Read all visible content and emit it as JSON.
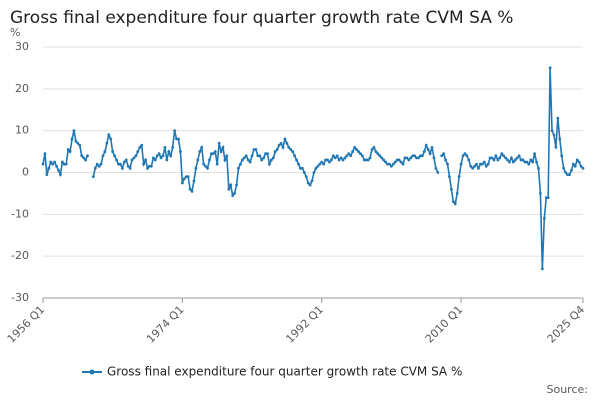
{
  "chart_data": {
    "type": "line",
    "title": "Gross final expenditure four quarter growth rate CVM SA %",
    "y_unit": "%",
    "source": "Source:",
    "categories": [
      "1956 Q1",
      null,
      null,
      null,
      null,
      null,
      null,
      null,
      null,
      null,
      null,
      null,
      null,
      null,
      null,
      null,
      null,
      null,
      null,
      null,
      null,
      null,
      null,
      null,
      null,
      null,
      null,
      null,
      null,
      null,
      null,
      null,
      null,
      null,
      null,
      null,
      null,
      null,
      null,
      null,
      null,
      null,
      null,
      null,
      null,
      null,
      null,
      null,
      null,
      null,
      null,
      null,
      null,
      null,
      null,
      null,
      null,
      null,
      null,
      null,
      null,
      null,
      null,
      null,
      null,
      null,
      null,
      null,
      null,
      null,
      null,
      null,
      "1974 Q1",
      null,
      null,
      null,
      null,
      null,
      null,
      null,
      null,
      null,
      null,
      null,
      null,
      null,
      null,
      null,
      null,
      null,
      null,
      null,
      null,
      null,
      null,
      null,
      null,
      null,
      null,
      null,
      null,
      null,
      null,
      null,
      null,
      null,
      null,
      null,
      null,
      null,
      null,
      null,
      null,
      null,
      null,
      null,
      null,
      null,
      null,
      null,
      null,
      null,
      null,
      null,
      null,
      null,
      null,
      null,
      null,
      null,
      null,
      null,
      null,
      null,
      null,
      null,
      null,
      null,
      null,
      null,
      null,
      null,
      null,
      null,
      "1992 Q1",
      null,
      null,
      null,
      null,
      null,
      null,
      null,
      null,
      null,
      null,
      null,
      null,
      null,
      null,
      null,
      null,
      null,
      null,
      null,
      null,
      null,
      null,
      null,
      null,
      null,
      null,
      null,
      null,
      null,
      null,
      null,
      null,
      null,
      null,
      null,
      null,
      null,
      null,
      null,
      null,
      null,
      null,
      null,
      null,
      null,
      null,
      null,
      null,
      null,
      null,
      null,
      null,
      null,
      null,
      null,
      null,
      null,
      null,
      null,
      null,
      null,
      null,
      null,
      null,
      null,
      null,
      null,
      null,
      null,
      null,
      null,
      "2010 Q1",
      null,
      null,
      null,
      null,
      null,
      null,
      null,
      null,
      null,
      null,
      null,
      null,
      null,
      null,
      null,
      null,
      null,
      null,
      null,
      null,
      null,
      null,
      null,
      null,
      null,
      null,
      null,
      null,
      null,
      null,
      null,
      null,
      null,
      null,
      null,
      null,
      null,
      null,
      null,
      null,
      null,
      null,
      null,
      null,
      null,
      null,
      null,
      null,
      null,
      null,
      null,
      null,
      null,
      null,
      null,
      null,
      null,
      null,
      null,
      null,
      null,
      null,
      "2025 Q4"
    ],
    "series": [
      {
        "name": "Gross final expenditure four quarter growth rate CVM SA %",
        "color": "#1f77b4",
        "values": [
          2,
          4.5,
          -0.5,
          1,
          2.5,
          2,
          2.5,
          1.5,
          0.5,
          -0.5,
          2.5,
          2,
          2,
          5.5,
          5,
          8,
          10,
          7.5,
          7,
          6.5,
          4,
          3.5,
          3,
          4,
          null,
          null,
          -1,
          1,
          2,
          1.5,
          2,
          4,
          5,
          7,
          9,
          8,
          5,
          4,
          3,
          2,
          2,
          1,
          2.5,
          3,
          1.5,
          1,
          3,
          3.5,
          4,
          5,
          6,
          6.5,
          2,
          3,
          1,
          1.5,
          1.5,
          3.5,
          3,
          4,
          4.5,
          3.5,
          4,
          6,
          3,
          5,
          4,
          6,
          10,
          8,
          8,
          5,
          -2.5,
          -1.5,
          -1,
          -1,
          -4,
          -4.5,
          -2,
          1,
          3,
          5,
          6,
          2,
          1.5,
          1,
          3,
          4.5,
          4.5,
          5,
          2,
          7,
          5,
          6,
          3,
          4,
          -4,
          -3,
          -5.5,
          -5,
          -3,
          1,
          2,
          3,
          3.5,
          4,
          3,
          2.5,
          4,
          5.5,
          5.5,
          4,
          4,
          3,
          3.5,
          4.5,
          4.5,
          2,
          3,
          3.5,
          5,
          5.5,
          6.5,
          7,
          6,
          8,
          7,
          6,
          5.5,
          5,
          4,
          3,
          2,
          1,
          1,
          0,
          -1,
          -2.5,
          -3,
          -2,
          0,
          1,
          1.5,
          2,
          2.5,
          2,
          3,
          3,
          2.5,
          3,
          4,
          3.5,
          4,
          3,
          3.5,
          3,
          3.5,
          4,
          4.5,
          4,
          5,
          6,
          5.5,
          5,
          4.5,
          4,
          3,
          3,
          3,
          3.5,
          5.5,
          6,
          5,
          4.5,
          4,
          3.5,
          3,
          2.5,
          2,
          2,
          1.5,
          2,
          2.5,
          3,
          3,
          2.5,
          2,
          3.5,
          3.5,
          3,
          3.5,
          4,
          4,
          3.5,
          3.5,
          4,
          4,
          5,
          6.5,
          5.5,
          4.5,
          6,
          3.5,
          1,
          0,
          null,
          4,
          4.5,
          3,
          2,
          -1,
          -4,
          -7,
          -7.5,
          -5,
          -1,
          2,
          4,
          4.5,
          4,
          3,
          1.5,
          1,
          1.5,
          2,
          1,
          2,
          2,
          2.5,
          1.5,
          2,
          3.5,
          3.5,
          3,
          4,
          3,
          3.5,
          4.5,
          4,
          3.5,
          3,
          2.5,
          3.5,
          2.5,
          3,
          3.5,
          4,
          3,
          3,
          2.5,
          2.5,
          2,
          3,
          2.5,
          4.5,
          2.5,
          1,
          -5,
          -23,
          -11,
          -6,
          -6,
          25,
          10,
          9,
          6,
          13,
          8,
          4,
          1,
          0,
          -0.5,
          -0.5,
          0.5,
          2,
          1.5,
          3,
          2.5,
          1.5,
          1
        ]
      }
    ],
    "ylim": [
      -30,
      30
    ],
    "yticks": [
      -30,
      -20,
      -10,
      0,
      10,
      20,
      30
    ],
    "grid": true,
    "legend": "bottom"
  }
}
